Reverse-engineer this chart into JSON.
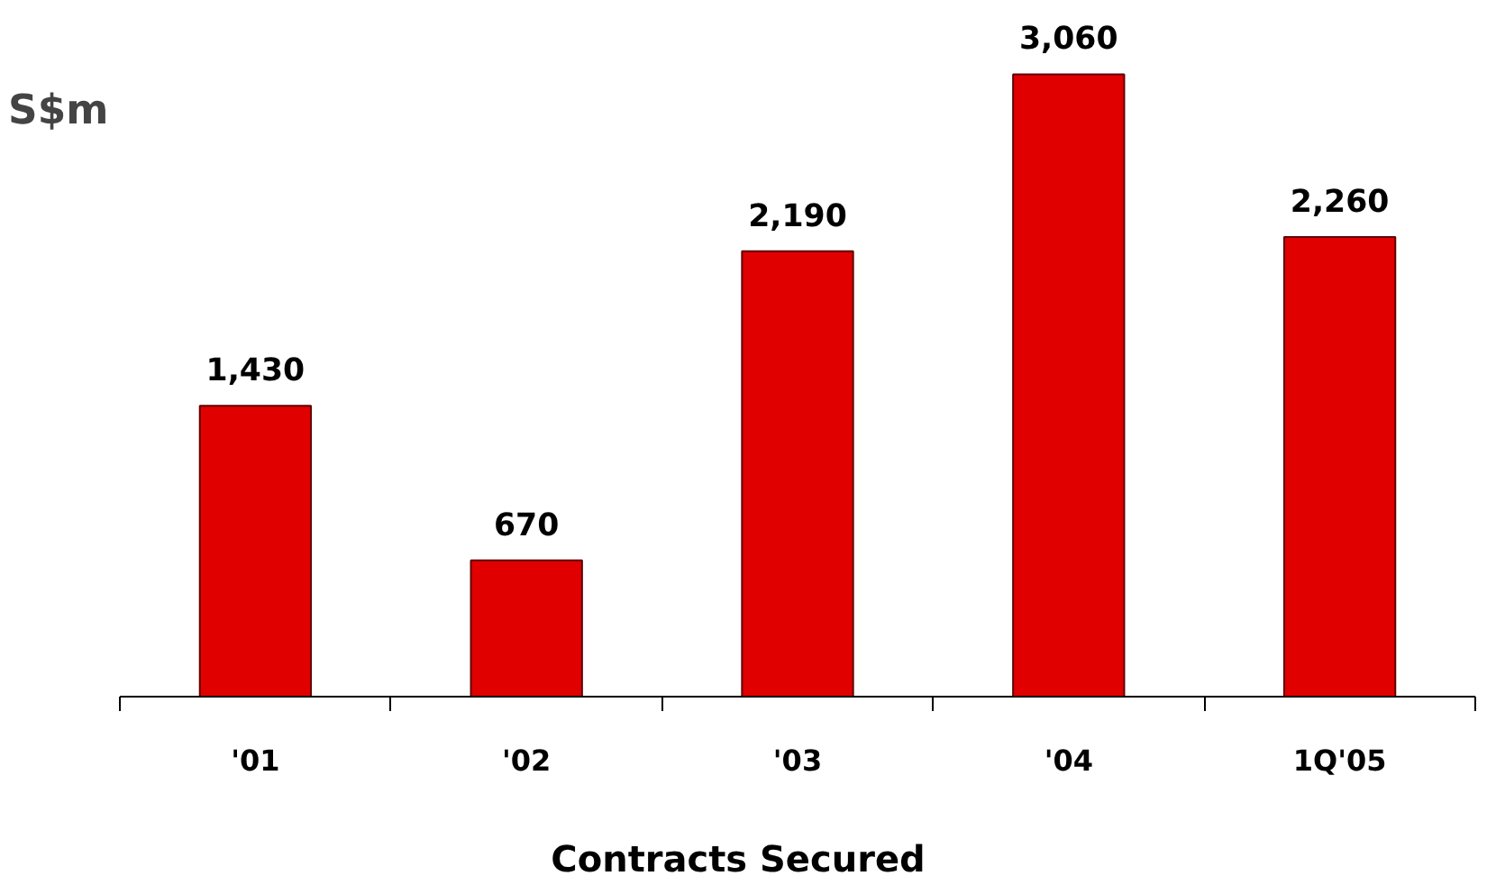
{
  "chart_data": {
    "type": "bar",
    "xlabel": "Contracts Secured",
    "ylabel": "S$m",
    "categories": [
      "'01",
      "'02",
      "'03",
      "'04",
      "1Q'05"
    ],
    "values": [
      1430,
      670,
      2190,
      3060,
      2260
    ],
    "value_labels": [
      "1,430",
      "670",
      "2,190",
      "3,060",
      "2,260"
    ],
    "color": "#e00000",
    "grid": false
  }
}
